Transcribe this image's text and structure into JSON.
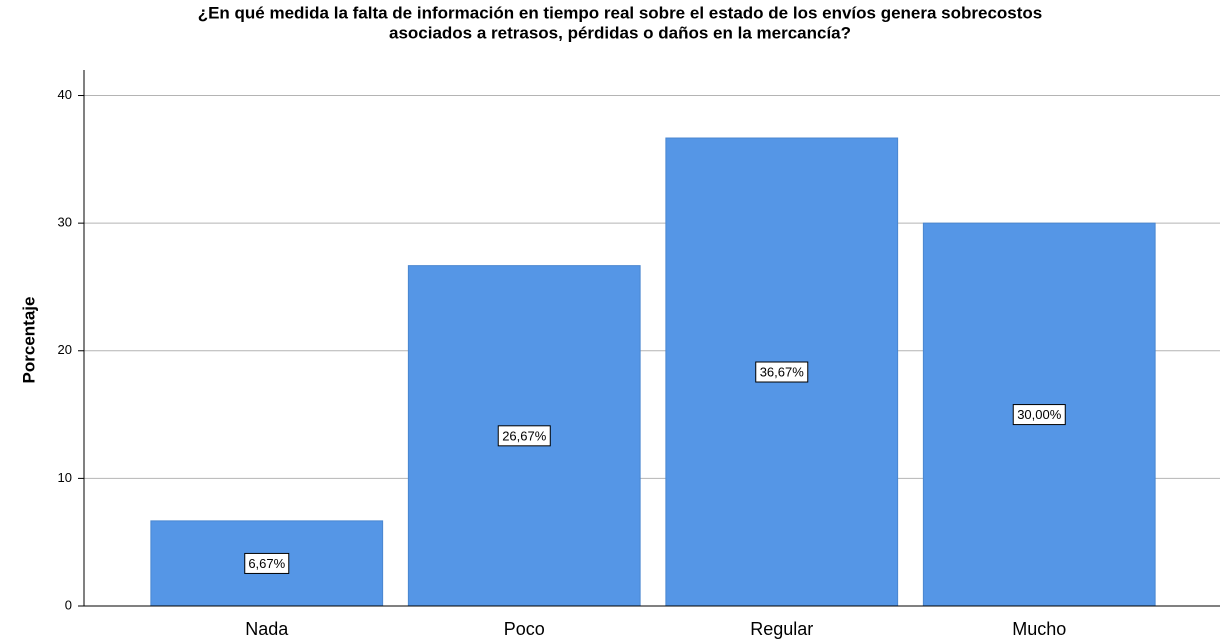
{
  "chart_data": {
    "type": "bar",
    "title": [
      "¿En qué medida la falta de información en tiempo real sobre el estado de los envíos genera sobrecostos",
      "asociados a retrasos, pérdidas o daños en la mercancía?"
    ],
    "y_label": "Porcentaje",
    "categories": [
      "Nada",
      "Poco",
      "Regular",
      "Mucho"
    ],
    "values": [
      6.67,
      26.67,
      36.67,
      30.0
    ],
    "value_labels": [
      "6,67%",
      "26,67%",
      "36,67%",
      "30,00%"
    ],
    "color": "#5596e6",
    "ylim": [
      0,
      42
    ],
    "yticks": [
      0,
      10,
      20,
      30,
      40
    ],
    "grid": true
  }
}
